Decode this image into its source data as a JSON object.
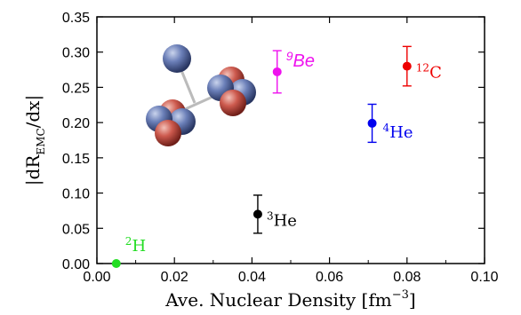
{
  "chart_data": {
    "type": "scatter",
    "title": "",
    "xlabel_main": "Ave. Nuclear Density [fm",
    "xlabel_sup": "−3",
    "xlabel_end": "]",
    "ylabel_prefix": "|dR",
    "ylabel_sub": "EMC",
    "ylabel_suffix": "/dx|",
    "xlim": [
      0.0,
      0.1
    ],
    "ylim": [
      0.0,
      0.35
    ],
    "x_ticks": [
      "0.00",
      "0.02",
      "0.04",
      "0.06",
      "0.08",
      "0.10"
    ],
    "y_ticks": [
      "0.00",
      "0.05",
      "0.10",
      "0.15",
      "0.20",
      "0.25",
      "0.30",
      "0.35"
    ],
    "grid": false,
    "points": [
      {
        "id": "2H",
        "mass": "2",
        "element": "H",
        "x": 0.005,
        "y": 0.0,
        "err": 0.003,
        "color": "#22dd22",
        "style": "serif"
      },
      {
        "id": "3He",
        "mass": "3",
        "element": "He",
        "x": 0.0415,
        "y": 0.07,
        "err": 0.027,
        "color": "#000000",
        "style": "serif"
      },
      {
        "id": "9Be",
        "mass": "9",
        "element": "Be",
        "x": 0.0465,
        "y": 0.272,
        "err": 0.03,
        "color": "#ee11ee",
        "style": "italic"
      },
      {
        "id": "4He",
        "mass": "4",
        "element": "He",
        "x": 0.071,
        "y": 0.199,
        "err": 0.027,
        "color": "#0000ee",
        "style": "serif"
      },
      {
        "id": "12C",
        "mass": "12",
        "element": "C",
        "x": 0.08,
        "y": 0.28,
        "err": 0.028,
        "color": "#ee0000",
        "style": "serif"
      }
    ],
    "illustration": "beryllium-9-nucleus-cluster"
  }
}
